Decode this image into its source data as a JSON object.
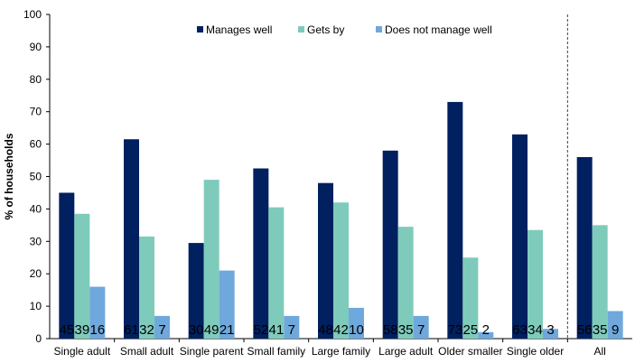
{
  "chart_data": {
    "type": "bar",
    "ylabel": "% of households",
    "ylim": [
      0,
      100
    ],
    "yticks": [
      0,
      10,
      20,
      30,
      40,
      50,
      60,
      70,
      80,
      90,
      100
    ],
    "grid": false,
    "legend_position": "top",
    "categories": [
      "Single adult",
      "Small adult",
      "Single parent",
      "Small family",
      "Large family",
      "Large adult",
      "Older smaller",
      "Single older",
      "All"
    ],
    "series": [
      {
        "name": "Manages well",
        "color": "#002060",
        "values": [
          45,
          61.5,
          29.5,
          52.5,
          48,
          58,
          73,
          63,
          56
        ]
      },
      {
        "name": "Gets by",
        "color": "#7FCBBB",
        "values": [
          38.5,
          31.5,
          49,
          40.5,
          42,
          34.5,
          25,
          33.5,
          35
        ]
      },
      {
        "name": "Does not manage well",
        "color": "#6FA8DC",
        "values": [
          16,
          7,
          21,
          7,
          9.5,
          7,
          2,
          3,
          8.5
        ]
      }
    ],
    "data_labels": [
      [
        "45",
        "39",
        "16"
      ],
      [
        "61",
        "32",
        "7"
      ],
      [
        "30",
        "49",
        "21"
      ],
      [
        "52",
        "41",
        "7"
      ],
      [
        "48",
        "42",
        "10"
      ],
      [
        "58",
        "35",
        "7"
      ],
      [
        "73",
        "25",
        "2"
      ],
      [
        "63",
        "34",
        "3"
      ],
      [
        "56",
        "35",
        "9"
      ]
    ],
    "separator_before_category": "All",
    "separator_style": "dashed"
  }
}
